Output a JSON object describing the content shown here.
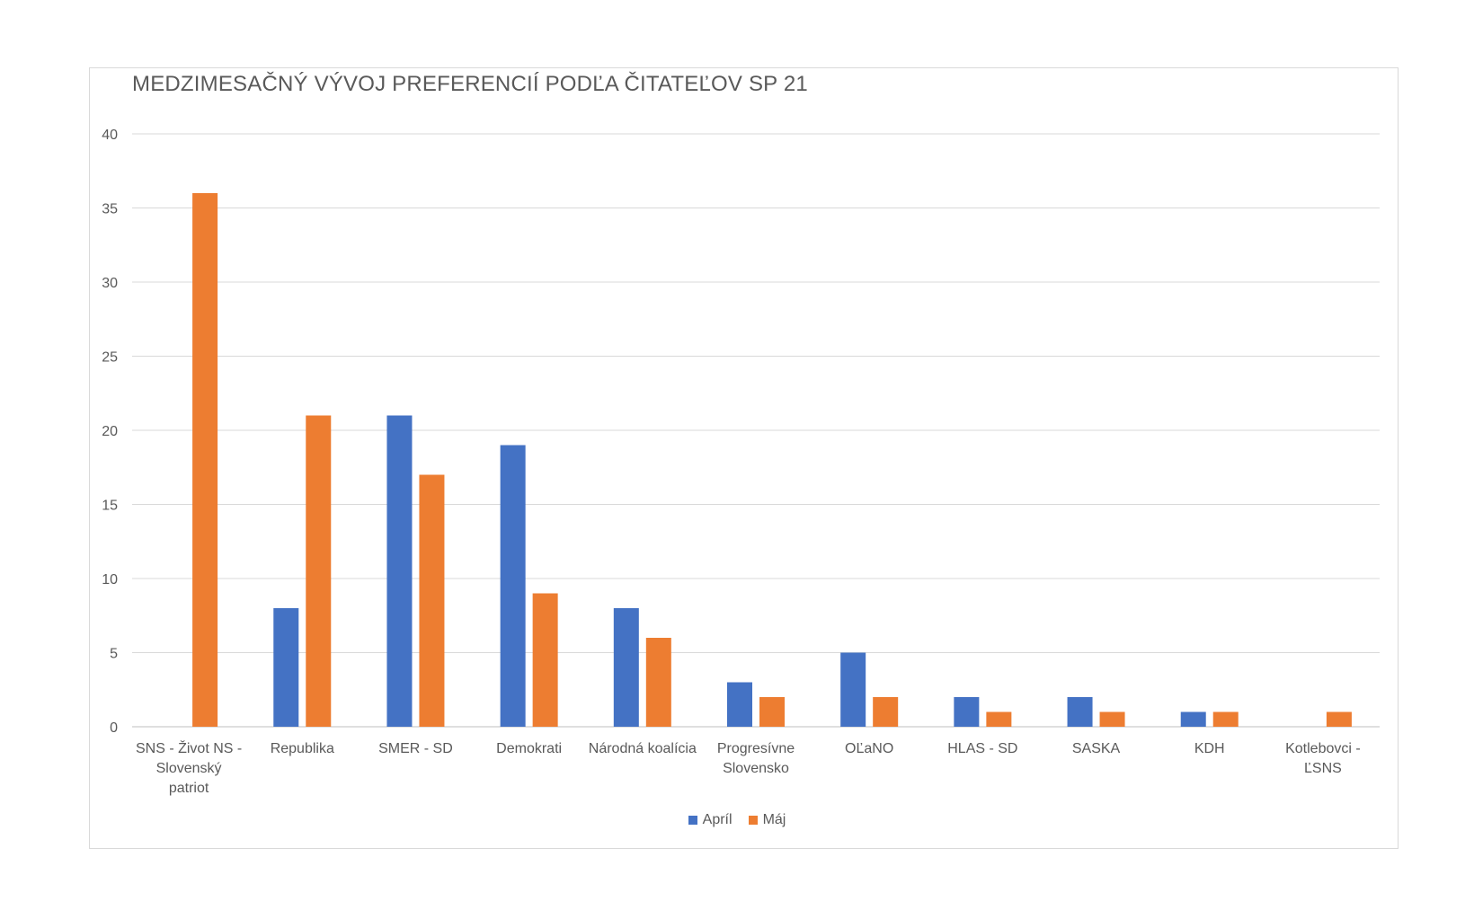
{
  "chart_data": {
    "type": "bar",
    "title": "MEDZIMESAČNÝ VÝVOJ PREFERENCIÍ PODĽA ČITATEĽOV SP 21",
    "categories": [
      [
        "SNS - Život NS -",
        "Slovenský",
        "patriot"
      ],
      [
        "Republika"
      ],
      [
        "SMER - SD"
      ],
      [
        "Demokrati"
      ],
      [
        "Národná koalícia"
      ],
      [
        "Progresívne",
        "Slovensko"
      ],
      [
        "OĽaNO"
      ],
      [
        "HLAS - SD"
      ],
      [
        "SASKA"
      ],
      [
        "KDH"
      ],
      [
        "Kotlebovci -",
        "ĽSNS"
      ]
    ],
    "series": [
      {
        "name": "Apríl",
        "color": "#4472c4",
        "values": [
          0,
          8,
          21,
          19,
          8,
          3,
          5,
          2,
          2,
          1,
          0
        ]
      },
      {
        "name": "Máj",
        "color": "#ed7d31",
        "values": [
          36,
          21,
          17,
          9,
          6,
          2,
          2,
          1,
          1,
          1,
          1
        ]
      }
    ],
    "ylim": [
      0,
      40
    ],
    "yticks": [
      0,
      5,
      10,
      15,
      20,
      25,
      30,
      35,
      40
    ],
    "grid": true,
    "legend": "bottom"
  }
}
